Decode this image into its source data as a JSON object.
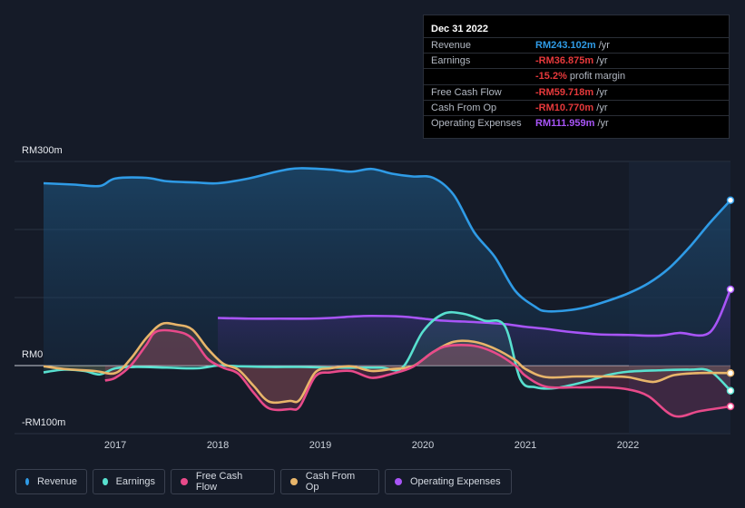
{
  "tooltip": {
    "date": "Dec 31 2022",
    "rows": [
      {
        "label": "Revenue",
        "value": "RM243.102m",
        "unit": "/yr",
        "color": "#2f9be6"
      },
      {
        "label": "Earnings",
        "value": "-RM36.875m",
        "unit": "/yr",
        "color": "#e6393b"
      },
      {
        "label": "",
        "value": "-15.2%",
        "unit": "profit margin",
        "color": "#e6393b"
      },
      {
        "label": "Free Cash Flow",
        "value": "-RM59.718m",
        "unit": "/yr",
        "color": "#e6393b"
      },
      {
        "label": "Cash From Op",
        "value": "-RM10.770m",
        "unit": "/yr",
        "color": "#e6393b"
      },
      {
        "label": "Operating Expenses",
        "value": "RM111.959m",
        "unit": "/yr",
        "color": "#a855f7"
      }
    ]
  },
  "chart_data": {
    "type": "line",
    "y_tick_labels": [
      "RM300m",
      "RM0",
      "-RM100m"
    ],
    "x_tick_labels": [
      "2017",
      "2018",
      "2019",
      "2020",
      "2021",
      "2022"
    ],
    "ylim": [
      -100,
      300
    ],
    "xlim": [
      2016.3,
      2023.0
    ],
    "series": [
      {
        "name": "Revenue",
        "color": "#2f9be6",
        "points": [
          [
            2016.3,
            268
          ],
          [
            2016.6,
            266
          ],
          [
            2016.85,
            264
          ],
          [
            2017.0,
            275
          ],
          [
            2017.3,
            276
          ],
          [
            2017.5,
            271
          ],
          [
            2017.8,
            269
          ],
          [
            2018.0,
            268
          ],
          [
            2018.3,
            275
          ],
          [
            2018.6,
            286
          ],
          [
            2018.8,
            290
          ],
          [
            2019.1,
            288
          ],
          [
            2019.3,
            285
          ],
          [
            2019.5,
            289
          ],
          [
            2019.7,
            282
          ],
          [
            2019.9,
            278
          ],
          [
            2020.1,
            276
          ],
          [
            2020.3,
            251
          ],
          [
            2020.5,
            196
          ],
          [
            2020.7,
            160
          ],
          [
            2020.9,
            110
          ],
          [
            2021.1,
            86
          ],
          [
            2021.2,
            80
          ],
          [
            2021.4,
            81
          ],
          [
            2021.6,
            86
          ],
          [
            2021.8,
            95
          ],
          [
            2022.0,
            106
          ],
          [
            2022.2,
            121
          ],
          [
            2022.4,
            143
          ],
          [
            2022.6,
            174
          ],
          [
            2022.8,
            210
          ],
          [
            2023.0,
            243
          ]
        ]
      },
      {
        "name": "Earnings",
        "color": "#58e0cf",
        "points": [
          [
            2016.3,
            -10
          ],
          [
            2016.5,
            -6
          ],
          [
            2016.7,
            -8
          ],
          [
            2016.85,
            -13
          ],
          [
            2017.0,
            -4
          ],
          [
            2017.2,
            -2
          ],
          [
            2017.5,
            -3
          ],
          [
            2017.8,
            -4
          ],
          [
            2018.0,
            0
          ],
          [
            2018.2,
            -1
          ],
          [
            2018.5,
            -2
          ],
          [
            2018.8,
            -2
          ],
          [
            2019.1,
            -3
          ],
          [
            2019.4,
            -3
          ],
          [
            2019.6,
            -3
          ],
          [
            2019.8,
            -3
          ],
          [
            2020.0,
            50
          ],
          [
            2020.2,
            76
          ],
          [
            2020.4,
            76
          ],
          [
            2020.6,
            66
          ],
          [
            2020.8,
            58
          ],
          [
            2020.95,
            -20
          ],
          [
            2021.1,
            -32
          ],
          [
            2021.3,
            -33
          ],
          [
            2021.6,
            -23
          ],
          [
            2021.8,
            -14
          ],
          [
            2022.0,
            -9
          ],
          [
            2022.3,
            -7
          ],
          [
            2022.6,
            -6
          ],
          [
            2022.8,
            -8
          ],
          [
            2023.0,
            -37
          ]
        ]
      },
      {
        "name": "Free Cash Flow",
        "color": "#e84a8a",
        "points": [
          [
            2016.9,
            -22
          ],
          [
            2017.0,
            -18
          ],
          [
            2017.15,
            0
          ],
          [
            2017.3,
            30
          ],
          [
            2017.4,
            50
          ],
          [
            2017.6,
            50
          ],
          [
            2017.75,
            40
          ],
          [
            2017.9,
            10
          ],
          [
            2018.05,
            -3
          ],
          [
            2018.2,
            -12
          ],
          [
            2018.35,
            -40
          ],
          [
            2018.5,
            -63
          ],
          [
            2018.7,
            -64
          ],
          [
            2018.8,
            -60
          ],
          [
            2018.95,
            -16
          ],
          [
            2019.1,
            -10
          ],
          [
            2019.3,
            -8
          ],
          [
            2019.5,
            -18
          ],
          [
            2019.7,
            -12
          ],
          [
            2019.9,
            -2
          ],
          [
            2020.1,
            20
          ],
          [
            2020.25,
            29
          ],
          [
            2020.5,
            29
          ],
          [
            2020.7,
            19
          ],
          [
            2020.9,
            0
          ],
          [
            2021.0,
            -15
          ],
          [
            2021.2,
            -31
          ],
          [
            2021.5,
            -32
          ],
          [
            2021.8,
            -32
          ],
          [
            2022.0,
            -35
          ],
          [
            2022.2,
            -45
          ],
          [
            2022.45,
            -74
          ],
          [
            2022.7,
            -67
          ],
          [
            2023.0,
            -60
          ]
        ]
      },
      {
        "name": "Cash From Op",
        "color": "#e8b56a",
        "points": [
          [
            2016.3,
            -1
          ],
          [
            2016.5,
            -5
          ],
          [
            2016.8,
            -8
          ],
          [
            2017.0,
            -11
          ],
          [
            2017.15,
            10
          ],
          [
            2017.3,
            40
          ],
          [
            2017.45,
            61
          ],
          [
            2017.6,
            60
          ],
          [
            2017.75,
            53
          ],
          [
            2017.9,
            25
          ],
          [
            2018.05,
            3
          ],
          [
            2018.2,
            -6
          ],
          [
            2018.35,
            -30
          ],
          [
            2018.5,
            -53
          ],
          [
            2018.7,
            -52
          ],
          [
            2018.8,
            -50
          ],
          [
            2018.95,
            -10
          ],
          [
            2019.1,
            -4
          ],
          [
            2019.3,
            -1
          ],
          [
            2019.5,
            -8
          ],
          [
            2019.7,
            -5
          ],
          [
            2019.9,
            -1
          ],
          [
            2020.1,
            20
          ],
          [
            2020.3,
            35
          ],
          [
            2020.5,
            35
          ],
          [
            2020.7,
            25
          ],
          [
            2020.9,
            8
          ],
          [
            2021.0,
            -5
          ],
          [
            2021.2,
            -17
          ],
          [
            2021.5,
            -16
          ],
          [
            2021.8,
            -16
          ],
          [
            2022.0,
            -17
          ],
          [
            2022.25,
            -24
          ],
          [
            2022.45,
            -14
          ],
          [
            2022.7,
            -11
          ],
          [
            2023.0,
            -11
          ]
        ]
      },
      {
        "name": "Operating Expenses",
        "color": "#a855f7",
        "points": [
          [
            2018.0,
            70
          ],
          [
            2018.3,
            69
          ],
          [
            2018.6,
            69
          ],
          [
            2018.9,
            69
          ],
          [
            2019.1,
            70
          ],
          [
            2019.3,
            72
          ],
          [
            2019.5,
            73
          ],
          [
            2019.8,
            72
          ],
          [
            2020.0,
            69
          ],
          [
            2020.2,
            66
          ],
          [
            2020.5,
            64
          ],
          [
            2020.8,
            61
          ],
          [
            2021.0,
            57
          ],
          [
            2021.2,
            54
          ],
          [
            2021.4,
            50
          ],
          [
            2021.7,
            46
          ],
          [
            2022.0,
            45
          ],
          [
            2022.3,
            44
          ],
          [
            2022.5,
            48
          ],
          [
            2022.8,
            49
          ],
          [
            2023.0,
            112
          ]
        ]
      }
    ]
  },
  "legend": [
    {
      "label": "Revenue",
      "color": "#2f9be6"
    },
    {
      "label": "Earnings",
      "color": "#58e0cf"
    },
    {
      "label": "Free Cash Flow",
      "color": "#e84a8a"
    },
    {
      "label": "Cash From Op",
      "color": "#e8b56a"
    },
    {
      "label": "Operating Expenses",
      "color": "#a855f7"
    }
  ]
}
